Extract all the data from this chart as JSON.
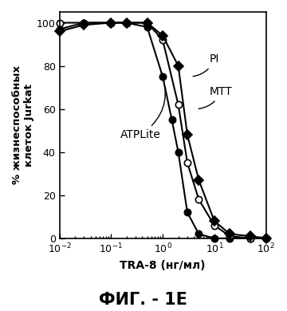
{
  "title": "ФИГ. - 1E",
  "xlabel": "TRA-8 (нг/мл)",
  "ylabel": "% жизнеспособных\nклеток Jurkat",
  "xlim": [
    0.01,
    100
  ],
  "ylim": [
    0,
    105
  ],
  "yticks": [
    0,
    20,
    40,
    60,
    80,
    100
  ],
  "series": [
    {
      "label": "ATPLite",
      "marker": "o",
      "fillstyle": "full",
      "color": "black",
      "markersize": 6,
      "x": [
        0.01,
        0.03,
        0.1,
        0.2,
        0.5,
        1.0,
        1.5,
        2.0,
        3.0,
        5.0,
        10.0,
        20.0,
        50.0
      ],
      "y": [
        97,
        100,
        100,
        100,
        98,
        75,
        55,
        40,
        12,
        2,
        0,
        0,
        0
      ]
    },
    {
      "label": "MTT",
      "marker": "o",
      "fillstyle": "none",
      "color": "black",
      "markersize": 6,
      "x": [
        0.01,
        0.03,
        0.1,
        0.2,
        0.5,
        1.0,
        2.0,
        3.0,
        5.0,
        10.0,
        20.0,
        50.0,
        100.0
      ],
      "y": [
        100,
        100,
        100,
        100,
        100,
        92,
        62,
        35,
        18,
        6,
        1,
        0,
        0
      ]
    },
    {
      "label": "PI",
      "marker": "D",
      "fillstyle": "full",
      "color": "black",
      "markersize": 6,
      "x": [
        0.01,
        0.03,
        0.1,
        0.2,
        0.5,
        1.0,
        2.0,
        3.0,
        5.0,
        10.0,
        20.0,
        50.0,
        100.0
      ],
      "y": [
        96,
        99,
        100,
        100,
        100,
        94,
        80,
        48,
        27,
        8,
        2,
        1,
        0
      ]
    }
  ]
}
